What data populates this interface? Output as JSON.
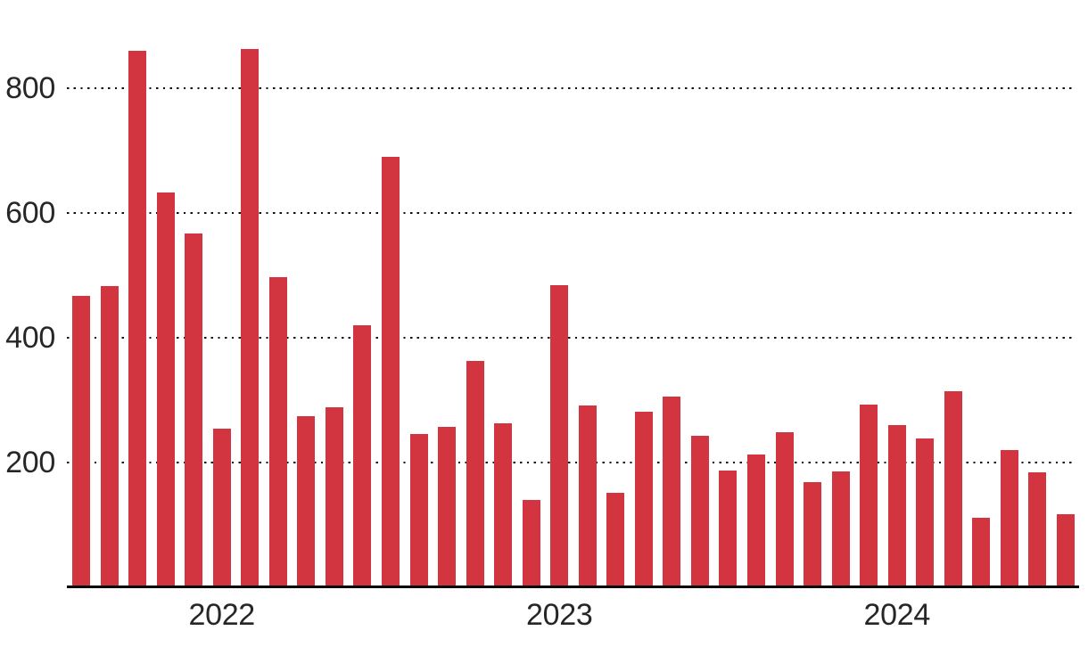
{
  "chart_data": {
    "type": "bar",
    "title": "",
    "xlabel": "",
    "ylabel": "",
    "x": [
      "2022-01",
      "2022-02",
      "2022-03",
      "2022-04",
      "2022-05",
      "2022-06",
      "2022-07",
      "2022-08",
      "2022-09",
      "2022-10",
      "2022-11",
      "2022-12",
      "2023-01",
      "2023-02",
      "2023-03",
      "2023-04",
      "2023-05",
      "2023-06",
      "2023-07",
      "2023-08",
      "2023-09",
      "2023-10",
      "2023-11",
      "2023-12",
      "2024-01",
      "2024-02",
      "2024-03",
      "2024-04",
      "2024-05",
      "2024-06",
      "2024-07",
      "2024-08",
      "2024-09",
      "2024-10",
      "2024-11",
      "2024-12"
    ],
    "values": [
      465,
      481,
      859,
      631,
      565,
      252,
      861,
      495,
      272,
      286,
      418,
      688,
      243,
      255,
      360,
      260,
      138,
      482,
      289,
      149,
      279,
      303,
      240,
      185,
      210,
      246,
      166,
      183,
      291,
      258,
      236,
      312,
      109,
      217,
      181,
      115
    ],
    "ylim": [
      0,
      880
    ],
    "y_ticks": [
      200,
      400,
      600,
      800
    ],
    "y_tick_labels": [
      "200",
      "400",
      "600",
      "800"
    ],
    "x_tick_labels": [
      "2022",
      "2023",
      "2024"
    ],
    "x_tick_anchor_month_index": [
      5,
      17,
      29
    ],
    "grid": "horizontal dotted lines at y ticks, drawn behind bars",
    "legend": "none",
    "colors": {
      "bar": "#d23440",
      "axis_text": "#262626",
      "gridline": "#0d0d0d",
      "baseline": "#000000",
      "background": "#ffffff"
    }
  }
}
